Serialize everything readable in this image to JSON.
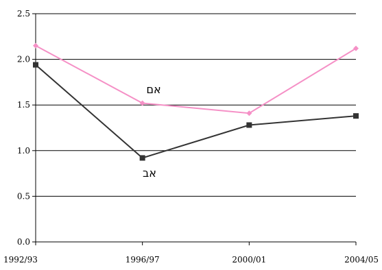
{
  "chart_data": {
    "type": "line",
    "categories": [
      "1992/93",
      "1996/97",
      "2000/01",
      "2004/05"
    ],
    "series": [
      {
        "name": "אם",
        "values": [
          2.15,
          1.52,
          1.41,
          2.12
        ],
        "color": "#f590c6",
        "marker": "diamond"
      },
      {
        "name": "אב",
        "values": [
          1.94,
          0.92,
          1.28,
          1.38
        ],
        "color": "#333333",
        "marker": "square"
      }
    ],
    "ylim": [
      0,
      2.5
    ],
    "yticks": [
      "0.0",
      "0.5",
      "1.0",
      "1.5",
      "2.0",
      "2.5"
    ],
    "grid": true,
    "annotations": [
      "אם",
      "אב"
    ]
  }
}
